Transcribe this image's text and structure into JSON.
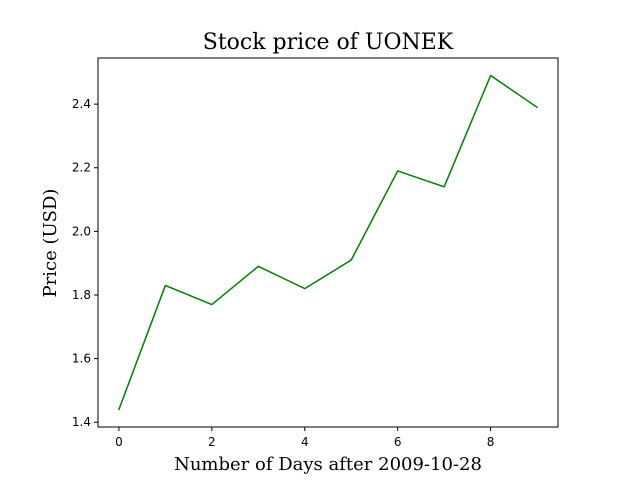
{
  "chart_data": {
    "type": "line",
    "title": "Stock price of UONEK",
    "xlabel": "Number of Days after 2009-10-28",
    "ylabel": "Price (USD)",
    "x": [
      0,
      1,
      2,
      3,
      4,
      5,
      6,
      7,
      8,
      9
    ],
    "series": [
      {
        "values": [
          1.44,
          1.83,
          1.77,
          1.89,
          1.82,
          1.91,
          2.19,
          2.14,
          2.49,
          2.39
        ],
        "color": "#008000"
      }
    ],
    "xlim": [
      -0.45,
      9.45
    ],
    "ylim": [
      1.385,
      2.545
    ],
    "xticks": [
      0,
      2,
      4,
      6,
      8
    ],
    "xtick_labels": [
      "0",
      "2",
      "4",
      "6",
      "8"
    ],
    "yticks": [
      1.4,
      1.6,
      1.8,
      2.0,
      2.2,
      2.4
    ],
    "ytick_labels": [
      "1.4",
      "1.6",
      "1.8",
      "2.0",
      "2.2",
      "2.4"
    ],
    "grid": false,
    "legend": "none"
  }
}
